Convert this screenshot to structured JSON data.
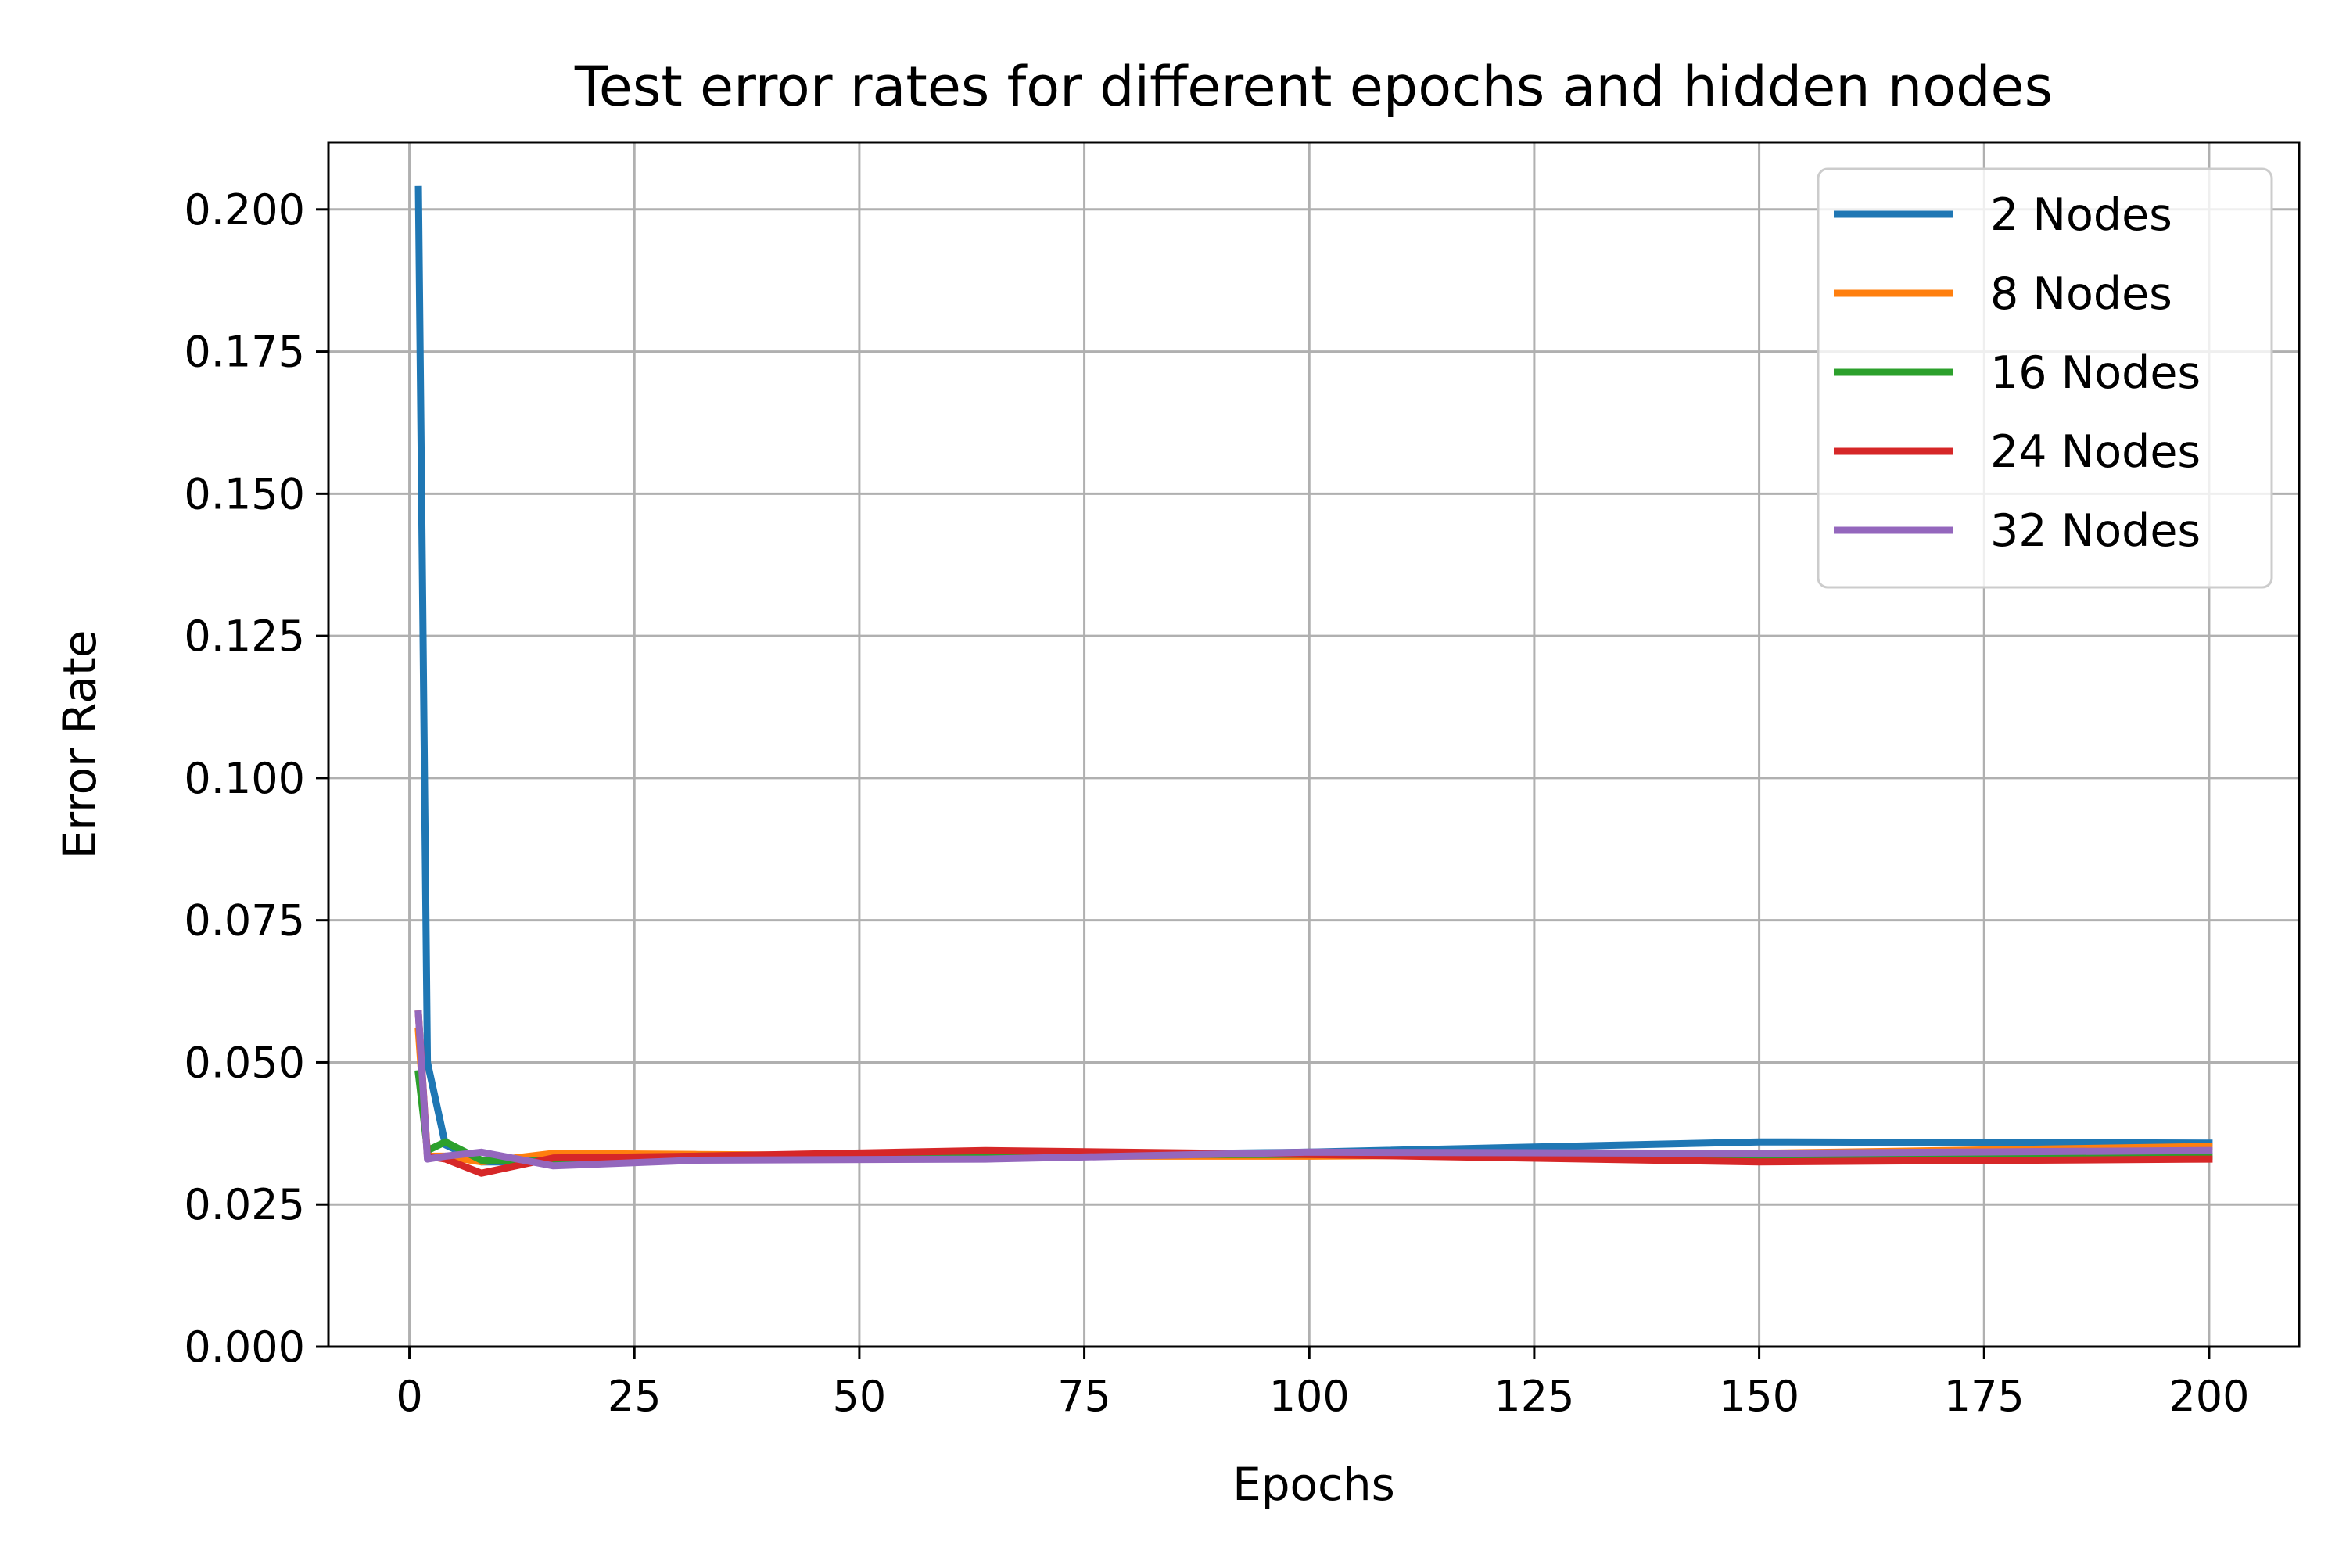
{
  "chart_data": {
    "type": "line",
    "title": "Test error rates for different epochs and hidden nodes",
    "xlabel": "Epochs",
    "ylabel": "Error Rate",
    "xlim": [
      -9,
      210
    ],
    "ylim": [
      0,
      0.2118
    ],
    "xticks": [
      0,
      25,
      50,
      75,
      100,
      125,
      150,
      175,
      200
    ],
    "xtick_labels": [
      "0",
      "25",
      "50",
      "75",
      "100",
      "125",
      "150",
      "175",
      "200"
    ],
    "yticks": [
      0,
      0.025,
      0.05,
      0.075,
      0.1,
      0.125,
      0.15,
      0.175,
      0.2
    ],
    "ytick_labels": [
      "0.000",
      "0.025",
      "0.050",
      "0.075",
      "0.100",
      "0.125",
      "0.150",
      "0.175",
      "0.200"
    ],
    "grid": true,
    "legend_position": "top-right",
    "x": [
      1,
      2,
      4,
      8,
      16,
      32,
      64,
      100,
      150,
      200
    ],
    "series": [
      {
        "name": "2 Nodes",
        "color": "#1f77b4",
        "values": [
          0.2035,
          0.05,
          0.0355,
          0.0325,
          0.0325,
          0.033,
          0.0335,
          0.0342,
          0.036,
          0.0358
        ]
      },
      {
        "name": "8 Nodes",
        "color": "#ff7f0e",
        "values": [
          0.0555,
          0.0335,
          0.0335,
          0.0325,
          0.034,
          0.0338,
          0.0335,
          0.0335,
          0.034,
          0.0352
        ]
      },
      {
        "name": "16 Nodes",
        "color": "#2ca02c",
        "values": [
          0.048,
          0.0345,
          0.036,
          0.0328,
          0.0328,
          0.0335,
          0.0338,
          0.0338,
          0.0335,
          0.0335
        ]
      },
      {
        "name": "24 Nodes",
        "color": "#d62728",
        "values": [
          0.0585,
          0.0335,
          0.033,
          0.0305,
          0.0332,
          0.0335,
          0.0345,
          0.0338,
          0.0325,
          0.033
        ]
      },
      {
        "name": "32 Nodes",
        "color": "#9467bd",
        "values": [
          0.0585,
          0.033,
          0.0335,
          0.0342,
          0.0318,
          0.0328,
          0.033,
          0.0342,
          0.034,
          0.0345
        ]
      }
    ]
  }
}
